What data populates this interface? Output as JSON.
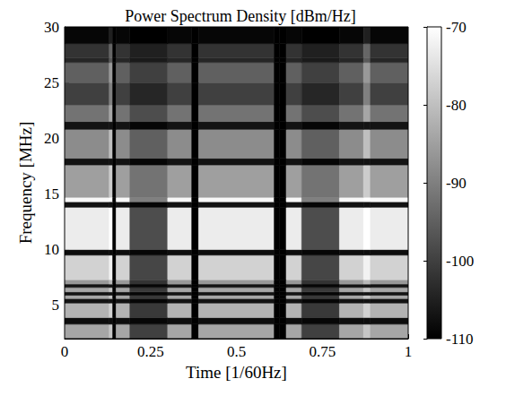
{
  "chart_data": {
    "type": "heatmap",
    "title": "Power Spectrum Density [dBm/Hz]",
    "x_label": "Time [1/60Hz]",
    "y_label": "Frequency [MHz]",
    "xlim": [
      0,
      1
    ],
    "xticks": [
      0,
      0.25,
      0.5,
      0.75,
      1
    ],
    "ylim": [
      2,
      30
    ],
    "yticks": [
      5,
      10,
      15,
      20,
      25,
      30
    ],
    "color": "gray",
    "time_edges": [
      0,
      0.13,
      0.14,
      0.15,
      0.19,
      0.3,
      0.37,
      0.39,
      0.61,
      0.625,
      0.645,
      0.69,
      0.8,
      0.87,
      0.89,
      1.0
    ],
    "freq_edges": [
      2,
      3.3,
      3.9,
      5.2,
      5.6,
      5.9,
      6.2,
      6.6,
      6.9,
      7.3,
      9.5,
      10,
      13.8,
      14.3,
      14.7,
      17.6,
      18.2,
      20.8,
      21.5,
      23,
      25,
      26.8,
      27.2,
      28.5,
      30
    ],
    "cells": [
      [
        -84,
        -79,
        -110,
        -84,
        -100,
        -84,
        -110,
        -84,
        -110,
        -110,
        -84,
        -100,
        -84,
        -79,
        -84
      ],
      [
        -108,
        -108,
        -110,
        -108,
        -109,
        -108,
        -110,
        -108,
        -110,
        -110,
        -108,
        -109,
        -108,
        -108,
        -108
      ],
      [
        -82,
        -77,
        -110,
        -82,
        -101,
        -82,
        -110,
        -82,
        -110,
        -110,
        -82,
        -101,
        -82,
        -77,
        -82
      ],
      [
        -107,
        -107,
        -110,
        -107,
        -109,
        -107,
        -110,
        -107,
        -110,
        -110,
        -107,
        -109,
        -107,
        -107,
        -107
      ],
      [
        -84,
        -79,
        -110,
        -84,
        -101,
        -84,
        -110,
        -84,
        -110,
        -110,
        -84,
        -101,
        -84,
        -79,
        -84
      ],
      [
        -107,
        -107,
        -110,
        -107,
        -109,
        -107,
        -110,
        -107,
        -110,
        -110,
        -107,
        -109,
        -107,
        -107,
        -107
      ],
      [
        -84,
        -79,
        -110,
        -84,
        -101,
        -84,
        -110,
        -84,
        -110,
        -110,
        -84,
        -101,
        -84,
        -79,
        -84
      ],
      [
        -107,
        -107,
        -110,
        -107,
        -109,
        -107,
        -110,
        -107,
        -110,
        -110,
        -107,
        -109,
        -107,
        -107,
        -107
      ],
      [
        -86,
        -81,
        -110,
        -86,
        -102,
        -86,
        -110,
        -86,
        -110,
        -110,
        -86,
        -102,
        -86,
        -81,
        -86
      ],
      [
        -77,
        -72,
        -110,
        -77,
        -99,
        -77,
        -110,
        -77,
        -110,
        -110,
        -77,
        -99,
        -77,
        -72,
        -77
      ],
      [
        -108,
        -108,
        -110,
        -108,
        -109,
        -108,
        -110,
        -108,
        -110,
        -110,
        -108,
        -109,
        -108,
        -108,
        -108
      ],
      [
        -73,
        -70,
        -110,
        -73,
        -98,
        -73,
        -110,
        -73,
        -110,
        -110,
        -73,
        -98,
        -73,
        -70,
        -73
      ],
      [
        -107,
        -107,
        -110,
        -107,
        -109,
        -107,
        -110,
        -107,
        -110,
        -110,
        -107,
        -109,
        -107,
        -107,
        -107
      ],
      [
        -71,
        -70,
        -110,
        -71,
        -90,
        -71,
        -110,
        -71,
        -110,
        -110,
        -71,
        -90,
        -71,
        -70,
        -71
      ],
      [
        -85,
        -78,
        -110,
        -85,
        -92,
        -85,
        -110,
        -85,
        -110,
        -110,
        -85,
        -92,
        -85,
        -78,
        -85
      ],
      [
        -107,
        -107,
        -110,
        -107,
        -109,
        -107,
        -110,
        -107,
        -110,
        -110,
        -107,
        -109,
        -107,
        -107,
        -107
      ],
      [
        -88,
        -80,
        -110,
        -88,
        -95,
        -88,
        -110,
        -88,
        -110,
        -110,
        -88,
        -95,
        -88,
        -80,
        -88
      ],
      [
        -107,
        -107,
        -110,
        -107,
        -109,
        -107,
        -110,
        -107,
        -110,
        -110,
        -107,
        -109,
        -107,
        -107,
        -107
      ],
      [
        -92,
        -84,
        -110,
        -92,
        -98,
        -92,
        -110,
        -92,
        -110,
        -110,
        -92,
        -98,
        -92,
        -84,
        -92
      ],
      [
        -100,
        -90,
        -110,
        -100,
        -104,
        -100,
        -110,
        -100,
        -110,
        -110,
        -100,
        -104,
        -100,
        -90,
        -100
      ],
      [
        -95,
        -86,
        -110,
        -95,
        -100,
        -95,
        -110,
        -95,
        -110,
        -110,
        -95,
        -100,
        -95,
        -86,
        -95
      ],
      [
        -104,
        -96,
        -110,
        -104,
        -106,
        -104,
        -110,
        -104,
        -110,
        -110,
        -104,
        -106,
        -104,
        -96,
        -104
      ],
      [
        -102,
        -94,
        -110,
        -102,
        -105,
        -102,
        -110,
        -102,
        -110,
        -110,
        -102,
        -105,
        -102,
        -94,
        -102
      ],
      [
        -109,
        -105,
        -110,
        -109,
        -110,
        -109,
        -110,
        -109,
        -110,
        -110,
        -109,
        -110,
        -109,
        -105,
        -109
      ]
    ],
    "colorbar": {
      "range": [
        -110,
        -70
      ],
      "ticks": [
        -110,
        -100,
        -90,
        -80,
        -70
      ]
    }
  }
}
